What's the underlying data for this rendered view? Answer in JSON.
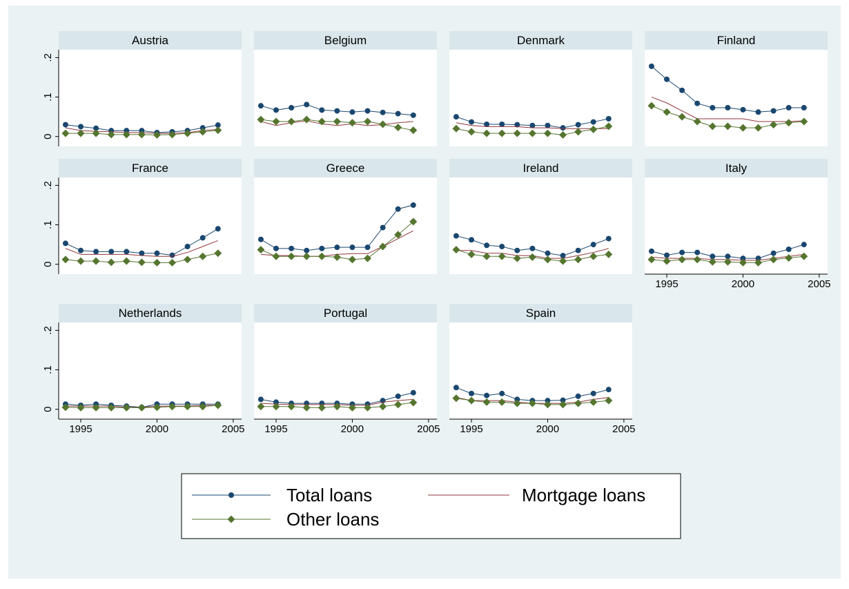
{
  "chart_data": {
    "type": "line",
    "x": [
      1994,
      1995,
      1996,
      1997,
      1998,
      1999,
      2000,
      2001,
      2002,
      2003,
      2004
    ],
    "xlim": [
      1993.55,
      2005.55
    ],
    "xticks": [
      1995,
      2000,
      2005
    ],
    "ylim": [
      -0.025,
      0.22
    ],
    "yticks": [
      0,
      {
        "value": 0.1,
        "label": ".1"
      },
      {
        "value": 0.2,
        "label": ".2"
      }
    ],
    "series": [
      {
        "name": "Total loans",
        "color": "#1a476f",
        "marker": "circle"
      },
      {
        "name": "Mortgage loans",
        "color": "#90353b",
        "marker": "none"
      },
      {
        "name": "Other loans",
        "color": "#55752f",
        "marker": "diamond"
      }
    ],
    "panels": [
      {
        "title": "Austria",
        "values": [
          [
            0.03,
            0.025,
            0.021,
            0.015,
            0.015,
            0.015,
            0.01,
            0.012,
            0.015,
            0.022,
            0.029
          ],
          [
            0.022,
            0.015,
            0.013,
            0.012,
            0.01,
            0.01,
            0.008,
            0.008,
            0.01,
            0.015,
            0.018
          ],
          [
            0.008,
            0.008,
            0.008,
            0.005,
            0.005,
            0.005,
            0.004,
            0.005,
            0.008,
            0.012,
            0.016
          ]
        ]
      },
      {
        "title": "Belgium",
        "values": [
          [
            0.078,
            0.067,
            0.073,
            0.081,
            0.067,
            0.065,
            0.062,
            0.065,
            0.061,
            0.058,
            0.054
          ],
          [
            0.038,
            0.028,
            0.035,
            0.04,
            0.032,
            0.028,
            0.032,
            0.028,
            0.03,
            0.035,
            0.038
          ],
          [
            0.043,
            0.038,
            0.038,
            0.043,
            0.038,
            0.038,
            0.035,
            0.038,
            0.031,
            0.023,
            0.016
          ]
        ]
      },
      {
        "title": "Denmark",
        "values": [
          [
            0.05,
            0.037,
            0.031,
            0.031,
            0.03,
            0.028,
            0.028,
            0.022,
            0.03,
            0.037,
            0.045
          ],
          [
            0.035,
            0.028,
            0.025,
            0.025,
            0.025,
            0.022,
            0.022,
            0.02,
            0.02,
            0.02,
            0.02
          ],
          [
            0.02,
            0.012,
            0.008,
            0.008,
            0.008,
            0.008,
            0.008,
            0.004,
            0.012,
            0.018,
            0.026
          ]
        ]
      },
      {
        "title": "Finland",
        "values": [
          [
            0.178,
            0.145,
            0.117,
            0.084,
            0.073,
            0.073,
            0.068,
            0.062,
            0.065,
            0.073,
            0.073
          ],
          [
            0.1,
            0.085,
            0.065,
            0.045,
            0.045,
            0.045,
            0.045,
            0.038,
            0.038,
            0.038,
            0.04
          ],
          [
            0.078,
            0.062,
            0.05,
            0.038,
            0.026,
            0.026,
            0.022,
            0.022,
            0.03,
            0.035,
            0.038
          ]
        ]
      },
      {
        "title": "France",
        "values": [
          [
            0.053,
            0.035,
            0.032,
            0.032,
            0.032,
            0.028,
            0.028,
            0.023,
            0.045,
            0.067,
            0.09
          ],
          [
            0.04,
            0.025,
            0.025,
            0.025,
            0.025,
            0.022,
            0.02,
            0.02,
            0.03,
            0.045,
            0.06
          ],
          [
            0.012,
            0.008,
            0.008,
            0.005,
            0.008,
            0.005,
            0.004,
            0.004,
            0.012,
            0.02,
            0.028
          ]
        ]
      },
      {
        "title": "Greece",
        "values": [
          [
            0.063,
            0.04,
            0.04,
            0.035,
            0.04,
            0.043,
            0.043,
            0.043,
            0.093,
            0.14,
            0.15
          ],
          [
            0.025,
            0.022,
            0.022,
            0.02,
            0.02,
            0.025,
            0.027,
            0.027,
            0.045,
            0.065,
            0.085
          ],
          [
            0.037,
            0.02,
            0.02,
            0.02,
            0.02,
            0.018,
            0.012,
            0.015,
            0.045,
            0.075,
            0.108
          ]
        ]
      },
      {
        "title": "Ireland",
        "values": [
          [
            0.072,
            0.062,
            0.048,
            0.045,
            0.035,
            0.04,
            0.028,
            0.022,
            0.035,
            0.05,
            0.065
          ],
          [
            0.035,
            0.035,
            0.028,
            0.028,
            0.022,
            0.022,
            0.015,
            0.015,
            0.022,
            0.03,
            0.04
          ],
          [
            0.037,
            0.025,
            0.02,
            0.02,
            0.015,
            0.018,
            0.012,
            0.008,
            0.012,
            0.02,
            0.025
          ]
        ]
      },
      {
        "title": "Italy",
        "values": [
          [
            0.033,
            0.023,
            0.03,
            0.03,
            0.02,
            0.02,
            0.015,
            0.015,
            0.028,
            0.038,
            0.05
          ],
          [
            0.018,
            0.015,
            0.015,
            0.015,
            0.012,
            0.012,
            0.01,
            0.01,
            0.015,
            0.02,
            0.025
          ],
          [
            0.012,
            0.008,
            0.012,
            0.012,
            0.006,
            0.006,
            0.004,
            0.004,
            0.012,
            0.016,
            0.02
          ]
        ]
      },
      {
        "title": "Netherlands",
        "values": [
          [
            0.013,
            0.01,
            0.013,
            0.01,
            0.008,
            0.005,
            0.013,
            0.013,
            0.013,
            0.013,
            0.013
          ],
          [
            0.008,
            0.008,
            0.008,
            0.008,
            0.005,
            0.005,
            0.008,
            0.008,
            0.008,
            0.01,
            0.01
          ],
          [
            0.005,
            0.004,
            0.004,
            0.004,
            0.004,
            0.004,
            0.005,
            0.007,
            0.007,
            0.007,
            0.01
          ]
        ]
      },
      {
        "title": "Portugal",
        "values": [
          [
            0.025,
            0.018,
            0.015,
            0.015,
            0.015,
            0.015,
            0.013,
            0.013,
            0.022,
            0.033,
            0.042
          ],
          [
            0.015,
            0.013,
            0.012,
            0.012,
            0.012,
            0.012,
            0.01,
            0.01,
            0.018,
            0.022,
            0.025
          ],
          [
            0.007,
            0.007,
            0.007,
            0.004,
            0.004,
            0.007,
            0.004,
            0.004,
            0.007,
            0.012,
            0.017
          ]
        ]
      },
      {
        "title": "Spain",
        "values": [
          [
            0.055,
            0.04,
            0.035,
            0.04,
            0.025,
            0.022,
            0.022,
            0.023,
            0.033,
            0.04,
            0.05
          ],
          [
            0.03,
            0.022,
            0.022,
            0.022,
            0.018,
            0.015,
            0.015,
            0.015,
            0.018,
            0.025,
            0.03
          ],
          [
            0.028,
            0.022,
            0.018,
            0.018,
            0.015,
            0.015,
            0.012,
            0.012,
            0.015,
            0.018,
            0.022
          ]
        ]
      }
    ]
  }
}
